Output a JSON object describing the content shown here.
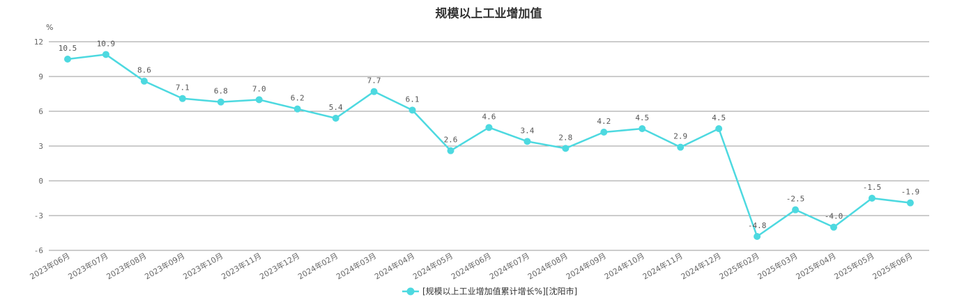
{
  "chart_data": {
    "type": "line",
    "title": "规模以上工业增加值",
    "unit": "%",
    "ylim": [
      -6,
      12
    ],
    "yticks": [
      -6,
      -3,
      0,
      3,
      6,
      9,
      12
    ],
    "grid": true,
    "legend_position": "bottom-center",
    "categories": [
      "2023年06月",
      "2023年07月",
      "2023年08月",
      "2023年09月",
      "2023年10月",
      "2023年11月",
      "2023年12月",
      "2024年02月",
      "2024年03月",
      "2024年04月",
      "2024年05月",
      "2024年06月",
      "2024年07月",
      "2024年08月",
      "2024年09月",
      "2024年10月",
      "2024年11月",
      "2024年12月",
      "2025年02月",
      "2025年03月",
      "2025年04月",
      "2025年05月",
      "2025年06月"
    ],
    "series": [
      {
        "name": "[规模以上工业增加值累计增长%][沈阳市]",
        "color": "#4dd9e0",
        "values": [
          10.5,
          10.9,
          8.6,
          7.1,
          6.8,
          7.0,
          6.2,
          5.4,
          7.7,
          6.1,
          2.6,
          4.6,
          3.4,
          2.8,
          4.2,
          4.5,
          2.9,
          4.5,
          -4.8,
          -2.5,
          -4.0,
          -1.5,
          -1.9
        ],
        "labels": [
          "10.5",
          "10.9",
          "8.6",
          "7.1",
          "6.8",
          "7.0",
          "6.2",
          "5.4",
          "7.7",
          "6.1",
          "2.6",
          "4.6",
          "3.4",
          "2.8",
          "4.2",
          "4.5",
          "2.9",
          "4.5",
          "-4.8",
          "-2.5",
          "-4.0",
          "-1.5",
          "-1.9"
        ]
      }
    ]
  }
}
